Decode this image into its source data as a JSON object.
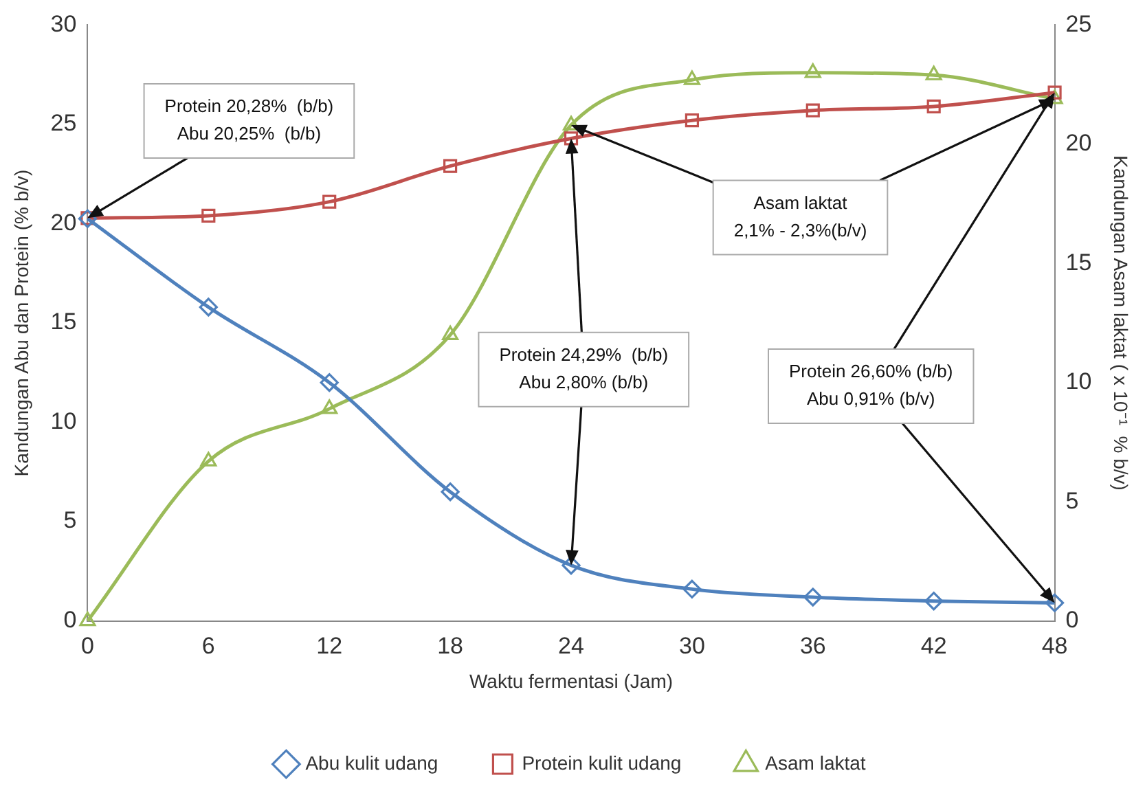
{
  "chart_data": {
    "type": "line",
    "xlabel": "Waktu fermentasi (Jam)",
    "ylabel": "Kandungan Abu dan Protein (% b/v)",
    "y2label": "Kandungan Asam laktat ( x 10⁻¹  % b/v)",
    "x": [
      0,
      6,
      12,
      18,
      24,
      30,
      36,
      42,
      48
    ],
    "series": [
      {
        "name": "Abu kulit udang",
        "color": "#4f81bd",
        "marker": "diamond",
        "values": [
          20.25,
          15.8,
          12.0,
          6.5,
          2.8,
          1.6,
          1.2,
          1.0,
          0.91
        ]
      },
      {
        "name": "Protein kulit udang",
        "color": "#c0504d",
        "marker": "square",
        "values": [
          20.28,
          20.4,
          21.1,
          22.9,
          24.29,
          25.2,
          25.7,
          25.9,
          26.6
        ]
      },
      {
        "name": "Asam laktat",
        "color": "#9bbb59",
        "marker": "triangle",
        "axis": "y2",
        "values": [
          0,
          6.7,
          8.9,
          12.0,
          20.8,
          22.7,
          23.0,
          22.9,
          21.9
        ]
      }
    ],
    "xlim": [
      0,
      48
    ],
    "xticks": [
      0,
      6,
      12,
      18,
      24,
      30,
      36,
      42,
      48
    ],
    "ylim": [
      0,
      30
    ],
    "yticks": [
      0,
      5,
      10,
      15,
      20,
      25,
      30
    ],
    "y2lim": [
      0,
      25
    ],
    "y2ticks": [
      0,
      5,
      10,
      15,
      20,
      25
    ],
    "grid": false,
    "legend": "bottom",
    "annotations": [
      {
        "text": "Protein 20,28%  (b/b)\nAbu 20,25%  (b/b)",
        "x": 0,
        "y": 20.28
      },
      {
        "text": "Protein 24,29%  (b/b)\nAbu 2,80% (b/b)",
        "x": 24,
        "y": 24.29
      },
      {
        "text": "Asam laktat\n2,1% - 2,3%(b/v)",
        "x": 48,
        "y": 26.28
      },
      {
        "text": "Protein 26,60% (b/b)\nAbu 0,91% (b/v)",
        "x": 48,
        "y": 26.6
      }
    ]
  }
}
